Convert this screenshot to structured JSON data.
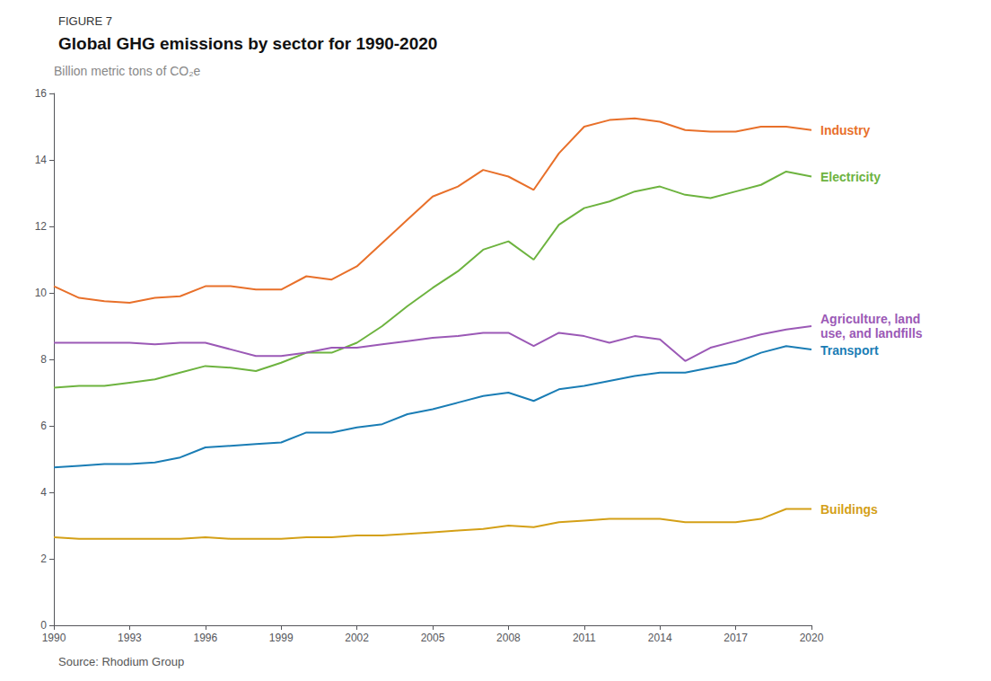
{
  "chart_data": {
    "type": "line",
    "figure_label": "FIGURE 7",
    "title": "Global GHG emissions by sector for 1990-2020",
    "ylabel": "Billion metric tons of CO₂e",
    "source": "Source: Rhodium Group",
    "x": [
      1990,
      1991,
      1992,
      1993,
      1994,
      1995,
      1996,
      1997,
      1998,
      1999,
      2000,
      2001,
      2002,
      2003,
      2004,
      2005,
      2006,
      2007,
      2008,
      2009,
      2010,
      2011,
      2012,
      2013,
      2014,
      2015,
      2016,
      2017,
      2018,
      2019,
      2020
    ],
    "xlim": [
      1990,
      2020
    ],
    "xticks": [
      1990,
      1993,
      1996,
      1999,
      2002,
      2005,
      2008,
      2011,
      2014,
      2017,
      2020
    ],
    "ylim": [
      0,
      16
    ],
    "yticks": [
      0,
      2,
      4,
      6,
      8,
      10,
      12,
      14,
      16
    ],
    "grid": false,
    "series": [
      {
        "name": "Industry",
        "color": "#e8702a",
        "values": [
          10.2,
          9.85,
          9.75,
          9.7,
          9.85,
          9.9,
          10.2,
          10.2,
          10.1,
          10.1,
          10.5,
          10.4,
          10.8,
          11.5,
          12.2,
          12.9,
          13.2,
          13.7,
          13.5,
          13.1,
          14.2,
          15.0,
          15.2,
          15.25,
          15.15,
          14.9,
          14.85,
          14.85,
          15.0,
          15.0,
          14.9
        ]
      },
      {
        "name": "Electricity",
        "color": "#6db33f",
        "values": [
          7.15,
          7.2,
          7.2,
          7.3,
          7.4,
          7.6,
          7.8,
          7.75,
          7.65,
          7.9,
          8.2,
          8.2,
          8.5,
          9.0,
          9.6,
          10.15,
          10.65,
          11.3,
          11.55,
          11.0,
          12.05,
          12.55,
          12.75,
          13.05,
          13.2,
          12.95,
          12.85,
          13.05,
          13.25,
          13.65,
          13.5
        ]
      },
      {
        "name": "Agriculture, land\nuse, and landfills",
        "color": "#9b59b6",
        "values": [
          8.5,
          8.5,
          8.5,
          8.5,
          8.45,
          8.5,
          8.5,
          8.3,
          8.1,
          8.1,
          8.2,
          8.35,
          8.35,
          8.45,
          8.55,
          8.65,
          8.7,
          8.8,
          8.8,
          8.4,
          8.8,
          8.7,
          8.5,
          8.7,
          8.6,
          7.95,
          8.35,
          8.55,
          8.75,
          8.9,
          9.0
        ]
      },
      {
        "name": "Transport",
        "color": "#1a7db5",
        "values": [
          4.75,
          4.8,
          4.85,
          4.85,
          4.9,
          5.05,
          5.35,
          5.4,
          5.45,
          5.5,
          5.8,
          5.8,
          5.95,
          6.05,
          6.35,
          6.5,
          6.7,
          6.9,
          7.0,
          6.75,
          7.1,
          7.2,
          7.35,
          7.5,
          7.6,
          7.6,
          7.75,
          7.9,
          8.2,
          8.4,
          8.3
        ]
      },
      {
        "name": "Buildings",
        "color": "#d4a017",
        "values": [
          2.65,
          2.6,
          2.6,
          2.6,
          2.6,
          2.6,
          2.65,
          2.6,
          2.6,
          2.6,
          2.65,
          2.65,
          2.7,
          2.7,
          2.75,
          2.8,
          2.85,
          2.9,
          3.0,
          2.95,
          3.1,
          3.15,
          3.2,
          3.2,
          3.2,
          3.1,
          3.1,
          3.1,
          3.2,
          3.5,
          3.5
        ]
      }
    ]
  }
}
